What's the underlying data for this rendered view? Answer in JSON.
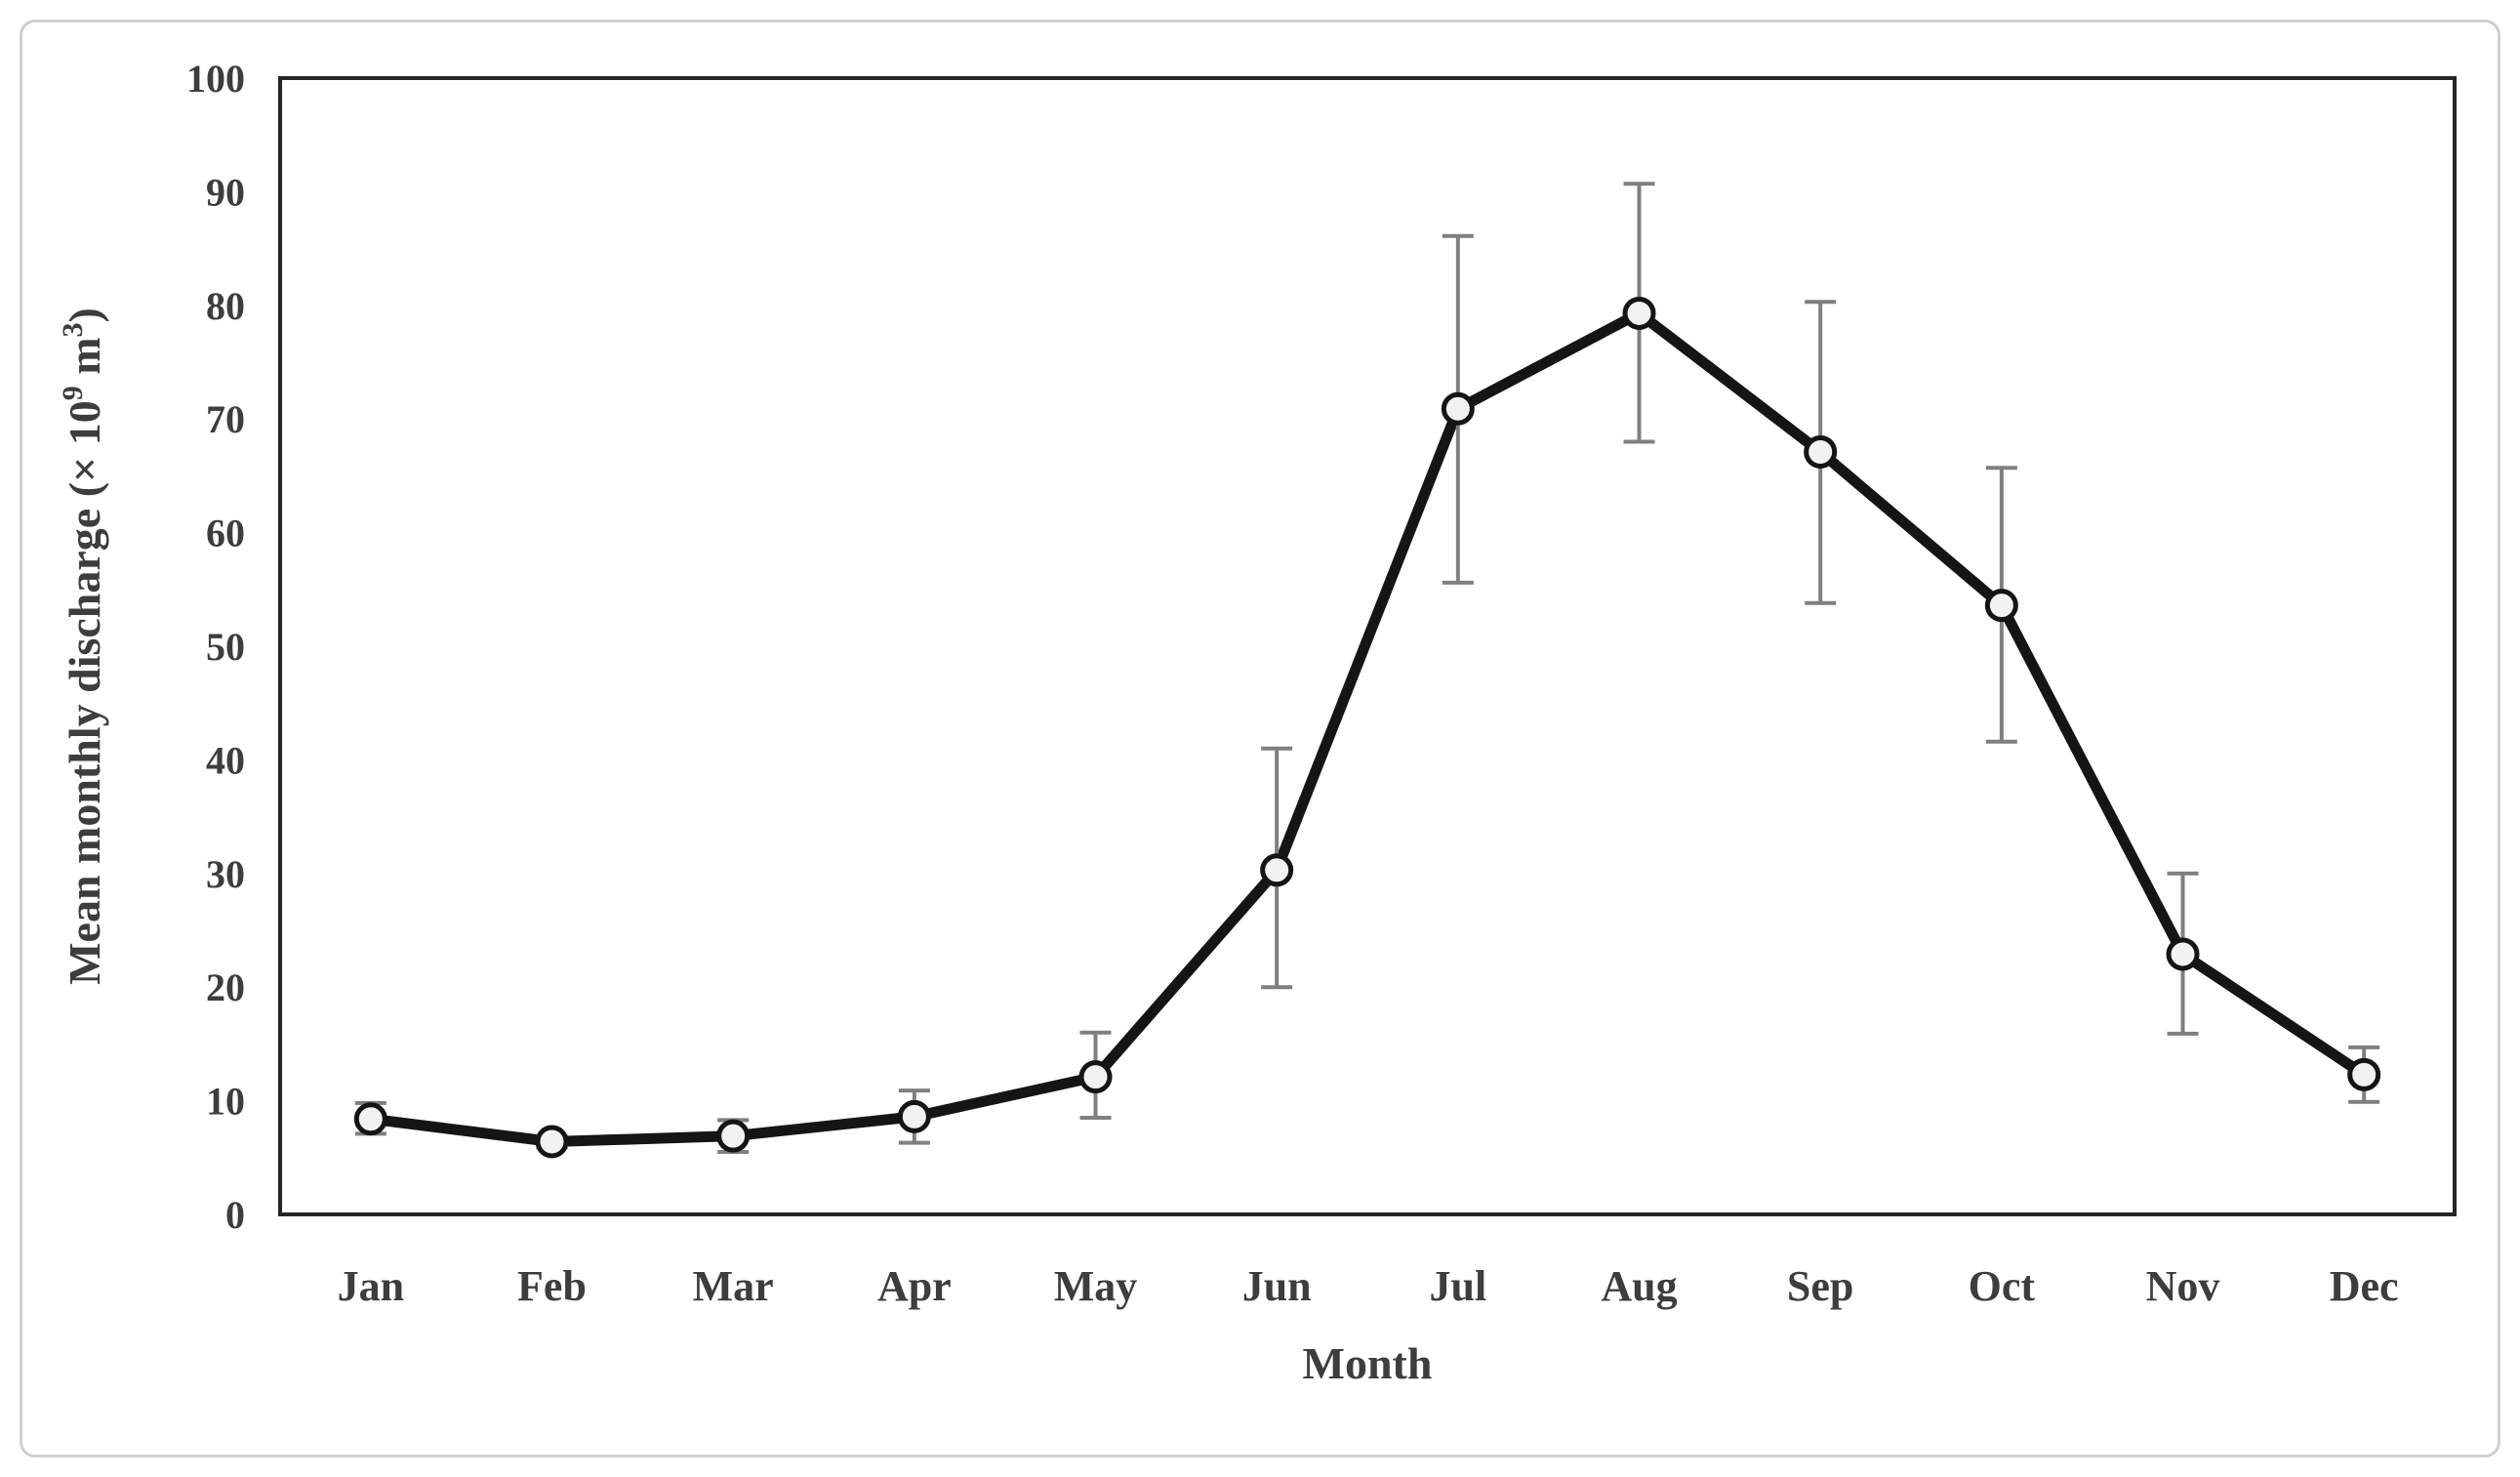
{
  "figure": {
    "background": "#ffffff",
    "border_color": "#cfcfcf"
  },
  "chart_data": {
    "type": "line",
    "title": "",
    "xlabel": "Month",
    "ylabel": "Mean monthly discharge (× 10⁹ m³)",
    "ylabel_parts": [
      {
        "text": "Mean monthly discharge (× 10",
        "sup": false
      },
      {
        "text": "9",
        "sup": true
      },
      {
        "text": " m",
        "sup": false
      },
      {
        "text": "3",
        "sup": true
      },
      {
        "text": ")",
        "sup": false
      }
    ],
    "categories": [
      "Jan",
      "Feb",
      "Mar",
      "Apr",
      "May",
      "Jun",
      "Jul",
      "Aug",
      "Sep",
      "Oct",
      "Nov",
      "Dec"
    ],
    "series": [
      {
        "name": "Mean monthly discharge",
        "values": [
          8.4,
          6.4,
          6.9,
          8.6,
          12.1,
          30.3,
          70.9,
          79.3,
          67.1,
          53.6,
          22.9,
          12.3
        ],
        "error_low": [
          7.1,
          5.9,
          5.5,
          6.3,
          8.5,
          20.0,
          55.6,
          68.0,
          53.8,
          41.6,
          15.9,
          9.9
        ],
        "error_high": [
          9.8,
          6.9,
          8.3,
          10.9,
          16.0,
          41.0,
          86.1,
          90.7,
          80.3,
          65.7,
          30.0,
          14.7
        ]
      }
    ],
    "ylim": [
      0,
      100
    ],
    "yticks": [
      0,
      10,
      20,
      30,
      40,
      50,
      60,
      70,
      80,
      90,
      100
    ],
    "grid": false,
    "legend": false,
    "marker": "circle-open",
    "colors": {
      "line": "#151515",
      "marker_fill": "#f2f2f2",
      "marker_stroke": "#151515",
      "error_bar": "#7f7f7f",
      "frame": "#262626",
      "text": "#3d3d3d"
    }
  }
}
